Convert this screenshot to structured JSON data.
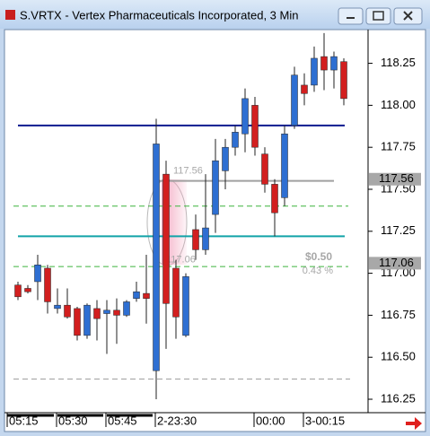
{
  "chart_data": {
    "type": "candlestick",
    "title": "S.VRTX - Vertex Pharmaceuticals Incorporated, 3 Min",
    "categories": [
      "05:15",
      null,
      null,
      null,
      null,
      "05:30",
      null,
      null,
      null,
      null,
      "05:45",
      null,
      null,
      null,
      null,
      "2-23:30",
      null,
      null,
      null,
      null,
      null,
      null,
      null,
      null,
      null,
      "00:00",
      null,
      null,
      null,
      null,
      "3-00:15",
      null,
      null,
      null,
      null
    ],
    "open": [
      null,
      116.93,
      116.91,
      116.95,
      117.03,
      116.79,
      116.81,
      116.79,
      116.63,
      116.79,
      116.76,
      116.78,
      116.75,
      116.85,
      116.88,
      116.42,
      117.59,
      117.03,
      116.63,
      117.26,
      117.14,
      117.35,
      117.61,
      117.75,
      117.83,
      118.0,
      117.71,
      117.53,
      117.45,
      117.88,
      118.12,
      118.12,
      118.29,
      118.21,
      118.26
    ],
    "high": [
      null,
      116.95,
      116.93,
      117.11,
      117.05,
      116.91,
      116.91,
      116.8,
      116.82,
      116.84,
      116.84,
      116.85,
      116.84,
      116.95,
      117.11,
      117.92,
      117.67,
      117.08,
      117.0,
      117.35,
      117.59,
      117.8,
      117.8,
      117.88,
      118.1,
      118.05,
      117.75,
      117.56,
      117.88,
      118.23,
      118.19,
      118.35,
      118.43,
      118.32,
      118.28
    ],
    "low": [
      null,
      116.84,
      116.88,
      116.84,
      116.76,
      116.76,
      116.73,
      116.6,
      116.61,
      116.6,
      116.52,
      116.58,
      116.74,
      116.83,
      116.7,
      116.25,
      116.55,
      116.61,
      116.62,
      117.08,
      117.11,
      117.24,
      117.5,
      117.7,
      117.72,
      117.7,
      117.48,
      117.22,
      117.4,
      117.86,
      118.0,
      118.08,
      118.09,
      118.1,
      118.0
    ],
    "close": [
      null,
      116.86,
      116.89,
      117.05,
      116.83,
      116.81,
      116.74,
      116.63,
      116.81,
      116.73,
      116.78,
      116.75,
      116.83,
      116.89,
      116.85,
      117.77,
      116.82,
      116.74,
      116.98,
      117.14,
      117.27,
      117.67,
      117.75,
      117.84,
      118.04,
      117.75,
      117.53,
      117.36,
      117.83,
      118.18,
      118.07,
      118.28,
      118.21,
      118.29,
      118.04
    ],
    "up_color": "#2e6fd2",
    "down_color": "#d21f1f",
    "ylim": [
      116.17,
      118.44
    ],
    "yticks": [
      {
        "value": 116.25,
        "label": "116.25"
      },
      {
        "value": 116.5,
        "label": "116.50"
      },
      {
        "value": 116.75,
        "label": "116.75"
      },
      {
        "value": 117.0,
        "label": "117.00"
      },
      {
        "value": 117.25,
        "label": "117.25"
      },
      {
        "value": 117.5,
        "label": "117.50"
      },
      {
        "value": 117.75,
        "label": "117.75"
      },
      {
        "value": 118.0,
        "label": "118.00"
      },
      {
        "value": 118.25,
        "label": "118.25"
      }
    ],
    "lines": [
      {
        "value": 117.88,
        "color": "#0d1a8f",
        "dashed": false
      },
      {
        "value": 117.22,
        "color": "#12a3a8",
        "dashed": false
      },
      {
        "value": 117.4,
        "color": "#3cb43c",
        "dashed": true
      },
      {
        "value": 117.04,
        "color": "#3cb43c",
        "dashed": true
      },
      {
        "value": 117.55,
        "color": "#a0a0a0",
        "dashed": false
      },
      {
        "value": 116.37,
        "color": "#a0a0a0",
        "dashed": true
      }
    ],
    "price_markers": [
      {
        "value": 117.56,
        "label": "117.56"
      },
      {
        "value": 117.06,
        "label": "117.06"
      }
    ],
    "annotations": [
      "$0.50",
      "0.43 %"
    ]
  }
}
